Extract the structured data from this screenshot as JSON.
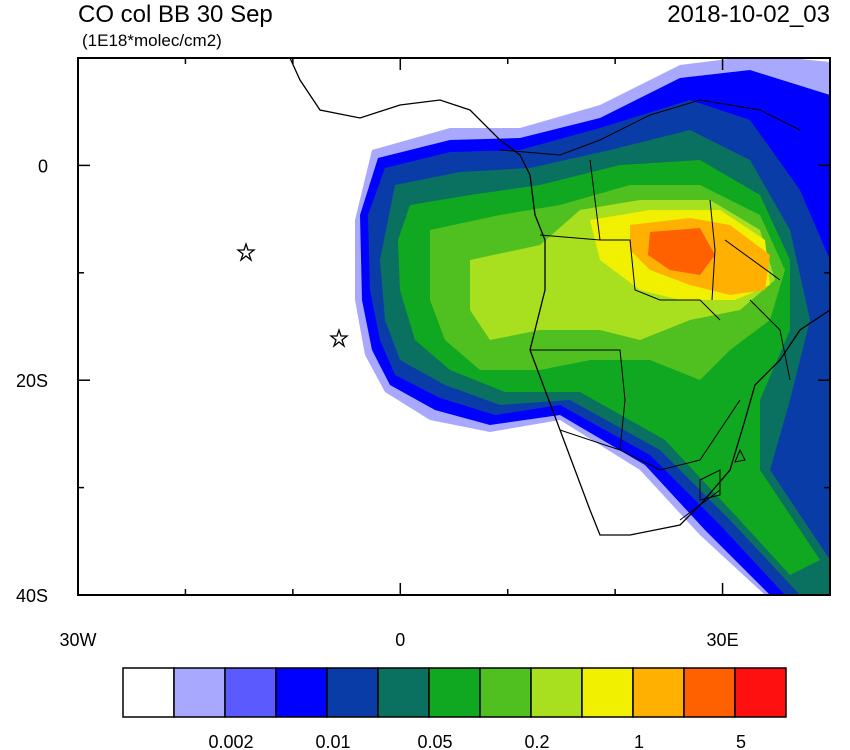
{
  "header": {
    "title": "CO col BB 30 Sep",
    "units": "(1E18*molec/cm2)",
    "timestamp": "2018-10-02_03"
  },
  "map": {
    "xlim": [
      -30,
      40
    ],
    "ylim": [
      -40,
      10
    ],
    "xticks": [
      {
        "value": -30,
        "label": "30W"
      },
      {
        "value": 0,
        "label": "0"
      },
      {
        "value": 30,
        "label": "30E"
      }
    ],
    "yticks": [
      {
        "value": 0,
        "label": "0"
      },
      {
        "value": -20,
        "label": "20S"
      },
      {
        "value": -40,
        "label": "40S"
      }
    ],
    "xminor": [
      -20,
      -10,
      10,
      20,
      40
    ],
    "yminor": [
      10,
      -10,
      -30
    ]
  },
  "colorbar": {
    "colors": [
      "#ffffff",
      "#a8a8ff",
      "#5a5aff",
      "#0000ff",
      "#0a3ca8",
      "#0a7060",
      "#10a820",
      "#50c020",
      "#a8e020",
      "#f0f000",
      "#ffb000",
      "#ff6000",
      "#ff1010"
    ],
    "labels": [
      null,
      "0.002",
      null,
      "0.01",
      null,
      "0.05",
      null,
      "0.2",
      null,
      "1",
      null,
      "5"
    ]
  }
}
